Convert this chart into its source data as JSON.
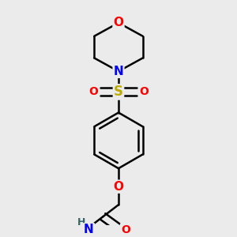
{
  "bg_color": "#ebebeb",
  "bond_color": "#000000",
  "bond_width": 1.8,
  "atom_colors": {
    "O": "#ff0000",
    "N": "#0000ff",
    "S": "#bbaa00",
    "H": "#336666",
    "C": "#000000"
  },
  "font_size": 11,
  "fig_size": [
    3.0,
    3.0
  ],
  "xlim": [
    0.18,
    0.82
  ],
  "ylim": [
    0.04,
    0.96
  ]
}
